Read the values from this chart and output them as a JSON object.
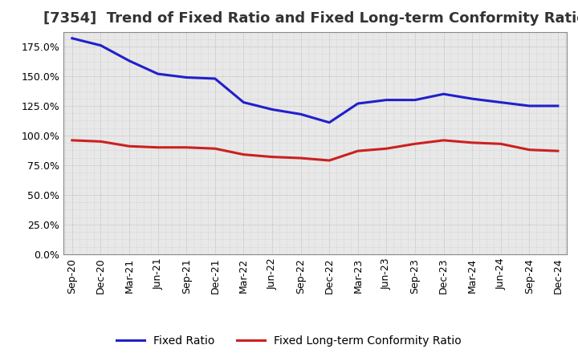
{
  "title": "[7354]  Trend of Fixed Ratio and Fixed Long-term Conformity Ratio",
  "x_labels": [
    "Sep-20",
    "Dec-20",
    "Mar-21",
    "Jun-21",
    "Sep-21",
    "Dec-21",
    "Mar-22",
    "Jun-22",
    "Sep-22",
    "Dec-22",
    "Mar-23",
    "Jun-23",
    "Sep-23",
    "Dec-23",
    "Mar-24",
    "Jun-24",
    "Sep-24",
    "Dec-24"
  ],
  "fixed_ratio": [
    1.82,
    1.76,
    1.63,
    1.52,
    1.49,
    1.48,
    1.28,
    1.22,
    1.18,
    1.11,
    1.27,
    1.3,
    1.3,
    1.35,
    1.31,
    1.28,
    1.25,
    1.25
  ],
  "fixed_lt_conformity": [
    0.96,
    0.95,
    0.91,
    0.9,
    0.9,
    0.89,
    0.84,
    0.82,
    0.81,
    0.79,
    0.87,
    0.89,
    0.93,
    0.96,
    0.94,
    0.93,
    0.88,
    0.87
  ],
  "fixed_ratio_color": "#2020cc",
  "fixed_lt_color": "#cc2020",
  "ylim": [
    0.0,
    1.875
  ],
  "yticks": [
    0.0,
    0.25,
    0.5,
    0.75,
    1.0,
    1.25,
    1.5,
    1.75
  ],
  "background_color": "#ffffff",
  "plot_bg_color": "#e8e8e8",
  "grid_color": "#aaaaaa",
  "legend_fixed_ratio": "Fixed Ratio",
  "legend_fixed_lt": "Fixed Long-term Conformity Ratio",
  "title_fontsize": 13,
  "axis_fontsize": 9,
  "legend_fontsize": 10,
  "line_width": 2.2
}
